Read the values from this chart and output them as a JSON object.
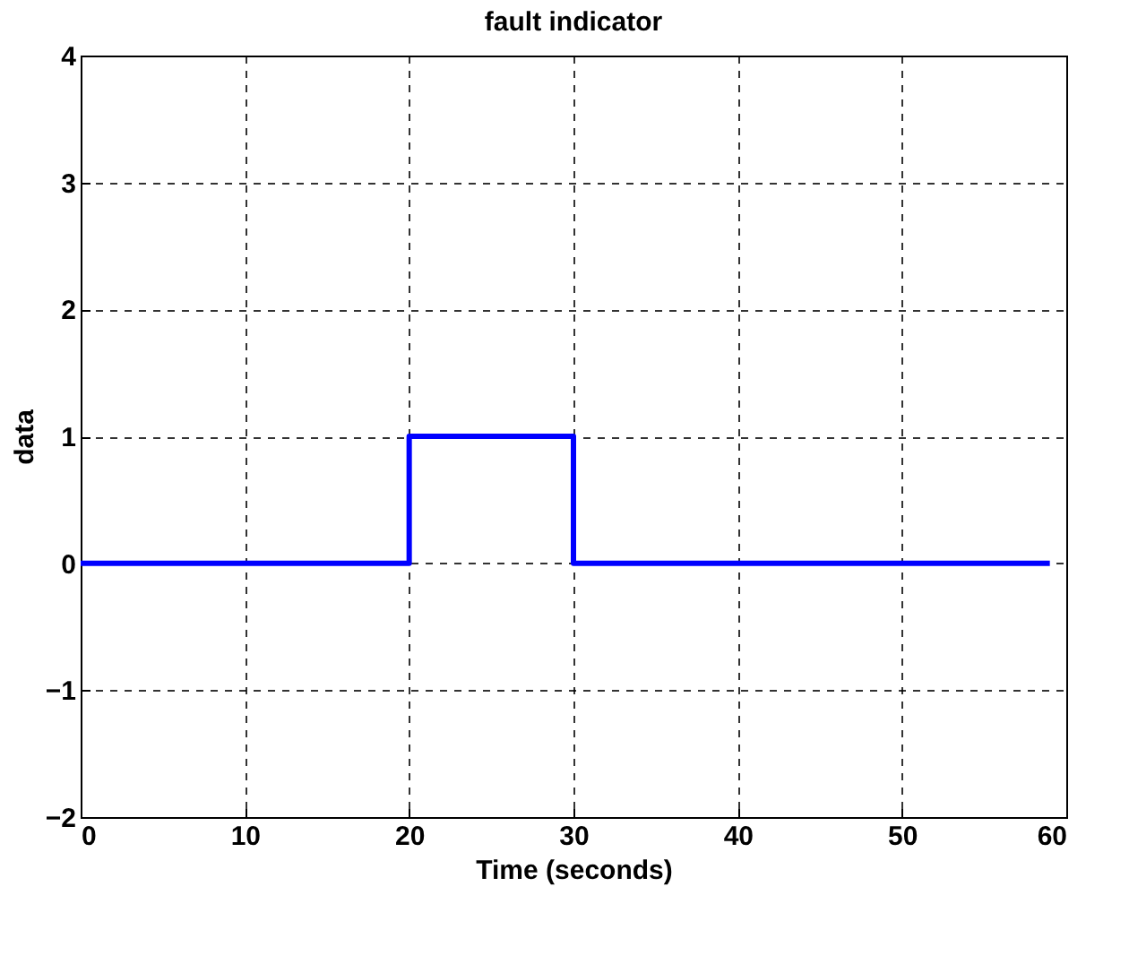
{
  "chart_data": {
    "type": "step",
    "title": "fault indicator",
    "xlabel": "Time (seconds)",
    "ylabel": "data",
    "x": [
      0,
      20,
      30,
      59
    ],
    "series": [
      {
        "color": "#0000ff",
        "values": [
          0,
          1,
          0,
          0
        ]
      }
    ],
    "xlim": [
      0,
      60
    ],
    "xticks": [
      0,
      10,
      20,
      30,
      40,
      50,
      60
    ],
    "ylim": [
      -2,
      4
    ],
    "yticks": [
      -2,
      -1,
      0,
      1,
      2,
      3,
      4
    ],
    "grid": true,
    "line_style": "solid"
  }
}
